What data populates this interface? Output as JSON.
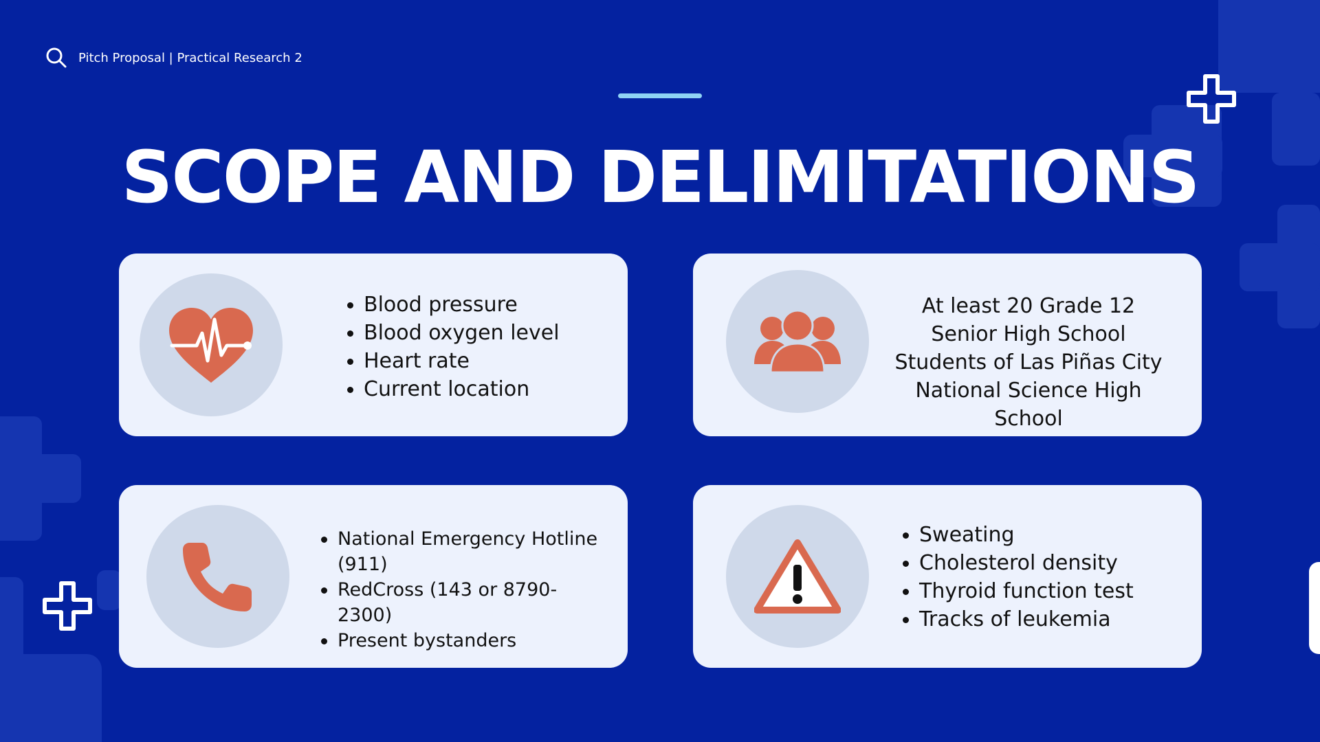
{
  "header": {
    "icon": "search-icon",
    "text": "Pitch Proposal | Practical Research 2"
  },
  "title": "SCOPE AND DELIMITATIONS",
  "colors": {
    "background": "#0422a0",
    "card": "#edf2fd",
    "icon_circle": "#cfd9ea",
    "icon_fill": "#d9694f",
    "accent_line": "#8fd3f4"
  },
  "cards": {
    "vitals": {
      "icon": "heart-pulse-icon",
      "items": [
        "Blood pressure",
        "Blood oxygen level",
        "Heart rate",
        "Current location"
      ]
    },
    "participants": {
      "icon": "group-icon",
      "text": "At least 20 Grade 12 Senior High School Students of Las Piñas City National Science High School"
    },
    "contacts": {
      "icon": "phone-icon",
      "items": [
        "National Emergency Hotline (911)",
        "RedCross (143 or 8790-2300)",
        "Present bystanders"
      ]
    },
    "exclusions": {
      "icon": "warning-icon",
      "items": [
        "Sweating",
        "Cholesterol density",
        "Thyroid function test",
        "Tracks of leukemia"
      ]
    }
  }
}
